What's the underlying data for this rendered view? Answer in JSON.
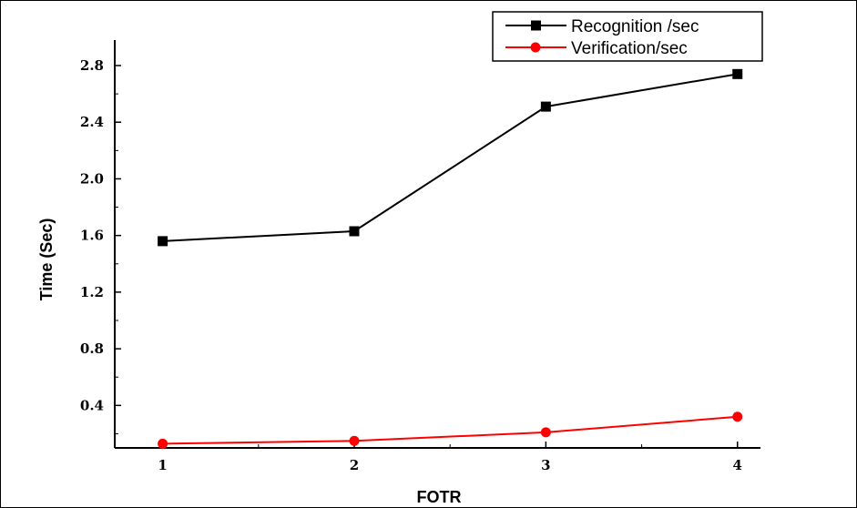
{
  "chart_data": {
    "type": "line",
    "xlabel": "FOTR",
    "ylabel": "Time (Sec)",
    "x": [
      1,
      2,
      3,
      4
    ],
    "xticks": [
      "1",
      "2",
      "3",
      "4"
    ],
    "yticks": [
      "0.4",
      "0.8",
      "1.2",
      "1.6",
      "2.0",
      "2.4",
      "2.8"
    ],
    "ylim": [
      0.1,
      2.98
    ],
    "xlim": [
      0.75,
      4.12
    ],
    "grid": false,
    "legend_position": "top-right",
    "series": [
      {
        "name": "Recognition /sec",
        "values": [
          1.56,
          1.63,
          2.51,
          2.74
        ],
        "color": "#000000",
        "marker": "square"
      },
      {
        "name": "Verification/sec",
        "values": [
          0.13,
          0.15,
          0.21,
          0.32
        ],
        "color": "#ff0000",
        "marker": "circle"
      }
    ]
  }
}
